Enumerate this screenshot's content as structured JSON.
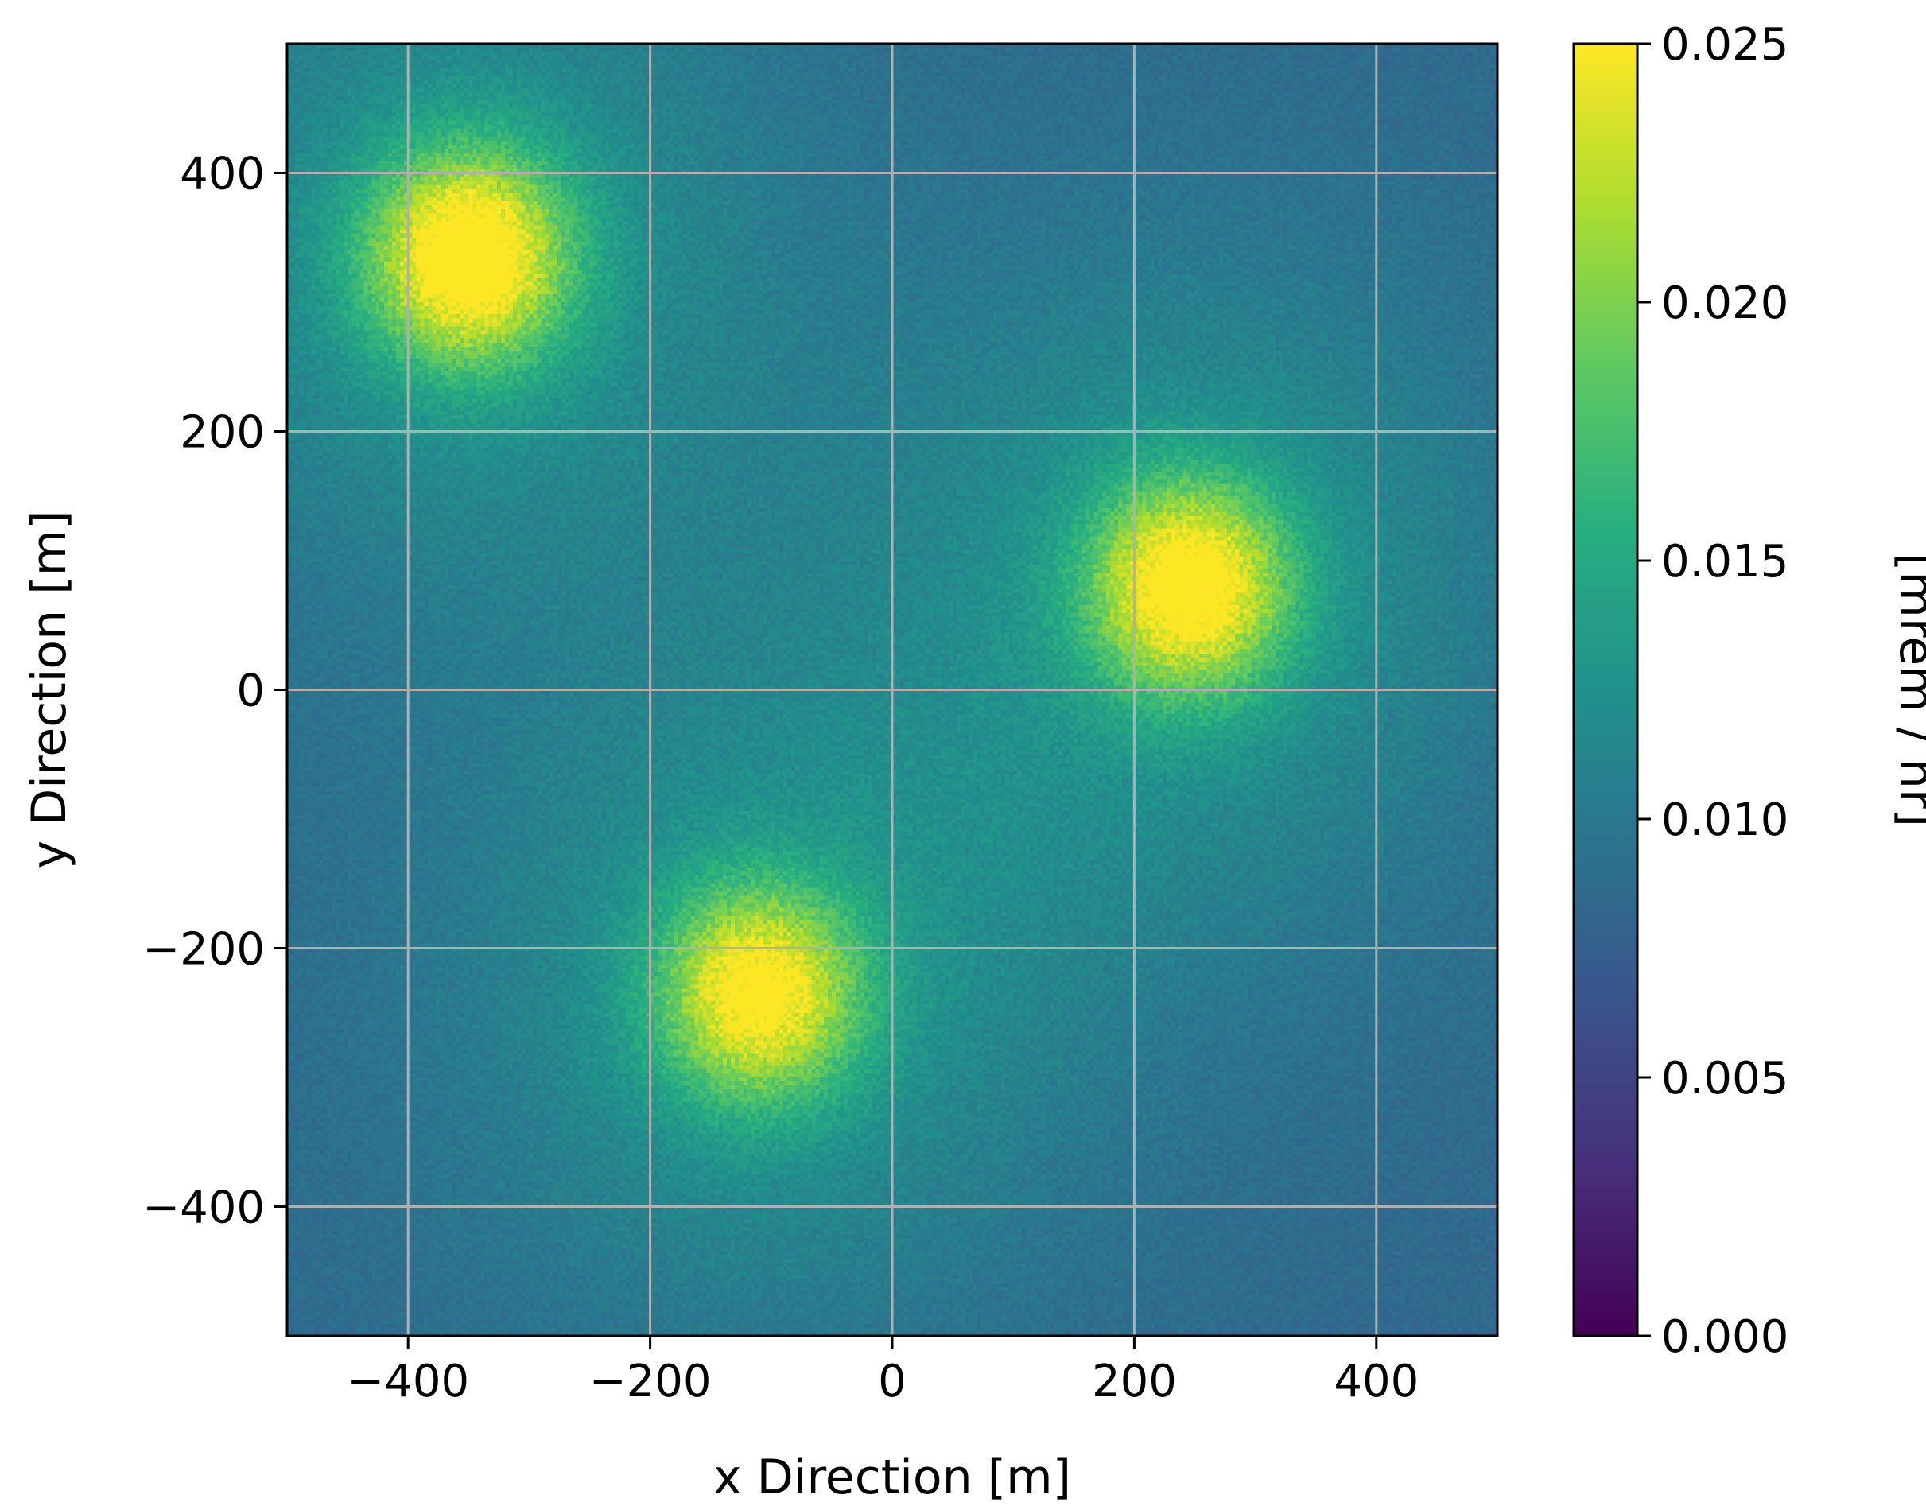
{
  "chart_data": {
    "type": "heatmap",
    "title": "",
    "xlabel": "x Direction [m]",
    "ylabel": "y Direction [m]",
    "xlim": [
      -500,
      500
    ],
    "ylim": [
      -500,
      500
    ],
    "xticks": [
      -400,
      -200,
      0,
      200,
      400
    ],
    "yticks": [
      -400,
      -200,
      0,
      200,
      400
    ],
    "xtick_labels": [
      "−400",
      "−200",
      "0",
      "200",
      "400"
    ],
    "ytick_labels": [
      "−400",
      "−200",
      "0",
      "200",
      "400"
    ],
    "grid": true,
    "colormap": "viridis",
    "colorbar": {
      "label": "[mrem / hr]",
      "range": [
        0.0,
        0.025
      ],
      "ticks": [
        0.0,
        0.005,
        0.01,
        0.015,
        0.02,
        0.025
      ],
      "tick_labels": [
        "0.000",
        "0.005",
        "0.010",
        "0.015",
        "0.020",
        "0.025"
      ]
    },
    "background_level": 0.0085,
    "sources": [
      {
        "x": -350,
        "y": 335,
        "peak": 0.0245
      },
      {
        "x": 245,
        "y": 80,
        "peak": 0.0235
      },
      {
        "x": -110,
        "y": -235,
        "peak": 0.0225
      }
    ]
  }
}
